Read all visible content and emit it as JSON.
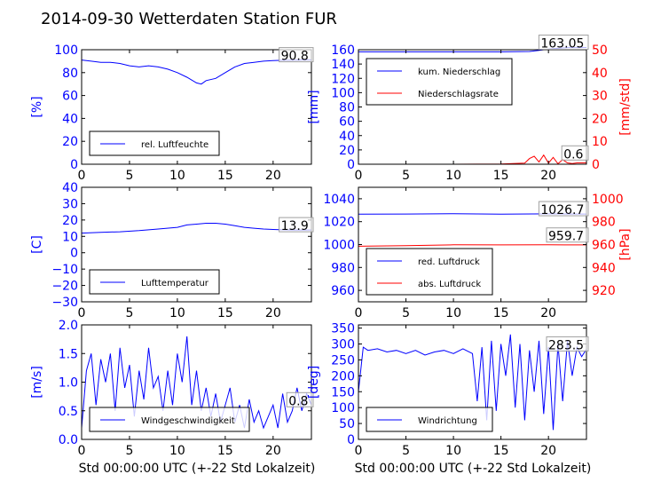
{
  "title": "2014-09-30 Wetterdaten Station FUR",
  "colors": {
    "blue": "#0000ff",
    "red": "#ff0000",
    "grey": "#a0a0a0",
    "text": "#000000"
  },
  "xlabel": "Std 00:00:00 UTC (+-22 Std Lokalzeit)",
  "chart_data": [
    {
      "type": "line",
      "xlim": [
        0,
        24
      ],
      "xticks": [
        "0",
        "5",
        "10",
        "15",
        "20"
      ],
      "ylim": [
        0,
        100
      ],
      "yticks": [
        "0",
        "20",
        "40",
        "60",
        "80",
        "100"
      ],
      "ylabel": "[%]",
      "annotation": "90.8",
      "series": [
        {
          "name": "rel. Luftfeuchte",
          "color": "#0000ff",
          "x": [
            0,
            1,
            2,
            3,
            4,
            5,
            6,
            7,
            8,
            9,
            10,
            11,
            12,
            12.5,
            13,
            14,
            15,
            16,
            17,
            18,
            19,
            20,
            21,
            22,
            23,
            24
          ],
          "y": [
            91,
            90,
            89,
            89,
            88,
            86,
            85,
            86,
            85,
            83,
            80,
            76,
            71,
            70,
            73,
            75,
            80,
            85,
            88,
            89,
            90,
            90.5,
            90.8,
            90.8,
            91,
            91
          ]
        }
      ]
    },
    {
      "type": "line",
      "xlim": [
        0,
        24
      ],
      "xticks": [
        "0",
        "5",
        "10",
        "15",
        "20"
      ],
      "ylim": [
        0,
        160
      ],
      "yticks": [
        "0",
        "20",
        "40",
        "60",
        "80",
        "100",
        "120",
        "140",
        "160"
      ],
      "ylabel": "[mm]",
      "ylim2": [
        0,
        50
      ],
      "yticks2": [
        "0",
        "10",
        "20",
        "30",
        "40",
        "50"
      ],
      "ylabel2": "[mm/std]",
      "annotation": "163.05",
      "annotation2": "0.6",
      "series": [
        {
          "name": "kum. Niederschlag",
          "color": "#0000ff",
          "axis": "left",
          "x": [
            0,
            5,
            10,
            15,
            18,
            19,
            20,
            21,
            22,
            23,
            24
          ],
          "y": [
            157,
            157,
            157,
            157,
            157.5,
            159,
            161,
            162,
            163,
            163,
            163.05
          ]
        },
        {
          "name": "Niederschlagsrate",
          "color": "#ff0000",
          "axis": "right",
          "x": [
            0,
            5,
            10,
            15,
            17.5,
            18,
            18.5,
            19,
            19.5,
            20,
            20.5,
            21,
            21.5,
            22,
            22.5,
            23,
            24
          ],
          "y": [
            0,
            0,
            0,
            0.1,
            0.5,
            2.5,
            3.5,
            1,
            4,
            0.5,
            3,
            0.2,
            2,
            0.6,
            0.3,
            0.6,
            0.6
          ]
        }
      ]
    },
    {
      "type": "line",
      "xlim": [
        0,
        24
      ],
      "xticks": [
        "0",
        "5",
        "10",
        "15",
        "20"
      ],
      "ylim": [
        -30,
        40
      ],
      "yticks": [
        "−30",
        "−20",
        "−10",
        "0",
        "10",
        "20",
        "30",
        "40"
      ],
      "ylabel": "[C]",
      "annotation": "13.9",
      "series": [
        {
          "name": "Lufttemperatur",
          "color": "#0000ff",
          "x": [
            0,
            2,
            4,
            6,
            8,
            10,
            11,
            12,
            13,
            14,
            15,
            16,
            17,
            18,
            19,
            20,
            21,
            22,
            23,
            24
          ],
          "y": [
            12,
            12.5,
            12.8,
            13.5,
            14.5,
            15.5,
            17,
            17.5,
            18,
            18,
            17.5,
            16.5,
            15.5,
            15,
            14.5,
            14.2,
            14,
            13.9,
            13.9,
            13.9
          ]
        }
      ]
    },
    {
      "type": "line",
      "xlim": [
        0,
        24
      ],
      "xticks": [
        "0",
        "5",
        "10",
        "15",
        "20"
      ],
      "ylim": [
        950,
        1050
      ],
      "yticks": [
        "960",
        "980",
        "1000",
        "1020",
        "1040"
      ],
      "ylabel": "",
      "ylim2": [
        910,
        1010
      ],
      "yticks2": [
        "920",
        "940",
        "960",
        "980",
        "1000"
      ],
      "ylabel2": "[hPa]",
      "annotation": "1026.7",
      "annotation2": "959.7",
      "series": [
        {
          "name": "red. Luftdruck",
          "color": "#0000ff",
          "axis": "left",
          "x": [
            0,
            5,
            10,
            15,
            20,
            24
          ],
          "y": [
            1026.5,
            1026.7,
            1027,
            1026.5,
            1026.8,
            1026.7
          ]
        },
        {
          "name": "abs. Luftdruck",
          "color": "#ff0000",
          "axis": "right",
          "x": [
            0,
            5,
            10,
            15,
            20,
            24
          ],
          "y": [
            958.5,
            959,
            959.8,
            959.7,
            959.8,
            959.7
          ]
        }
      ]
    },
    {
      "type": "line",
      "xlim": [
        0,
        24
      ],
      "xticks": [
        "0",
        "5",
        "10",
        "15",
        "20"
      ],
      "ylim": [
        0,
        2
      ],
      "yticks": [
        "0.0",
        "0.5",
        "1.0",
        "1.5",
        "2.0"
      ],
      "ylabel": "[m/s]",
      "annotation": "0.8",
      "series": [
        {
          "name": "Windgeschwindigkeit",
          "color": "#0000ff",
          "x": [
            0,
            0.5,
            1,
            1.5,
            2,
            2.5,
            3,
            3.5,
            4,
            4.5,
            5,
            5.5,
            6,
            6.5,
            7,
            7.5,
            8,
            8.5,
            9,
            9.5,
            10,
            10.5,
            11,
            11.5,
            12,
            12.5,
            13,
            13.5,
            14,
            14.5,
            15,
            15.5,
            16,
            16.5,
            17,
            17.5,
            18,
            18.5,
            19,
            19.5,
            20,
            20.5,
            21,
            21.5,
            22,
            22.5,
            23,
            23.5,
            24
          ],
          "y": [
            0.2,
            1.2,
            1.5,
            0.6,
            1.4,
            1.0,
            1.5,
            0.5,
            1.6,
            0.9,
            1.3,
            0.4,
            1.2,
            0.7,
            1.6,
            0.9,
            1.1,
            0.5,
            1.2,
            0.6,
            1.5,
            1.0,
            1.8,
            0.6,
            1.2,
            0.5,
            0.9,
            0.4,
            0.8,
            0.3,
            0.6,
            0.9,
            0.3,
            0.6,
            0.2,
            0.7,
            0.3,
            0.5,
            0.2,
            0.4,
            0.6,
            0.2,
            0.8,
            0.3,
            0.5,
            0.9,
            0.5,
            0.8,
            0.6
          ]
        }
      ]
    },
    {
      "type": "line",
      "xlim": [
        0,
        24
      ],
      "xticks": [
        "0",
        "5",
        "10",
        "15",
        "20"
      ],
      "ylim": [
        0,
        360
      ],
      "yticks": [
        "0",
        "50",
        "100",
        "150",
        "200",
        "250",
        "300",
        "350"
      ],
      "ylabel": "[deg]",
      "annotation": "283.5",
      "series": [
        {
          "name": "Windrichtung",
          "color": "#0000ff",
          "x": [
            0,
            0.5,
            1,
            2,
            3,
            4,
            5,
            6,
            7,
            8,
            9,
            10,
            11,
            12,
            12.5,
            13,
            13.5,
            14,
            14.5,
            15,
            15.5,
            16,
            16.5,
            17,
            17.5,
            18,
            18.5,
            19,
            19.5,
            20,
            20.5,
            21,
            21.5,
            22,
            22.5,
            23,
            23.5,
            24
          ],
          "y": [
            150,
            290,
            280,
            285,
            275,
            280,
            270,
            280,
            265,
            275,
            280,
            270,
            285,
            270,
            120,
            290,
            60,
            310,
            90,
            300,
            200,
            330,
            100,
            300,
            60,
            280,
            150,
            310,
            80,
            290,
            30,
            300,
            120,
            310,
            200,
            290,
            260,
            283.5
          ]
        }
      ]
    }
  ]
}
